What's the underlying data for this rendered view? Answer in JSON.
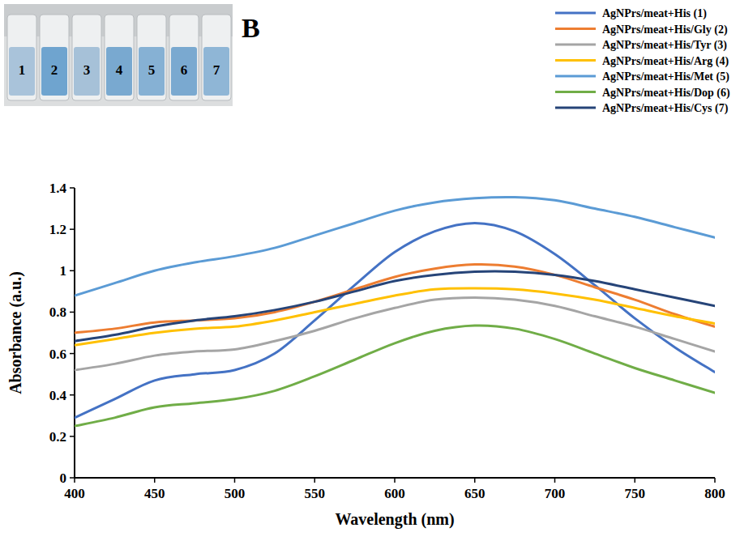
{
  "chart_data": {
    "type": "line",
    "panel_label": "B",
    "inset_labels": [
      "1",
      "2",
      "3",
      "4",
      "5",
      "6",
      "7"
    ],
    "x_label": "Wavelength (nm)",
    "y_label": "Absorbance (a.u.)",
    "x": [
      400,
      425,
      450,
      475,
      500,
      525,
      550,
      575,
      600,
      625,
      650,
      675,
      700,
      725,
      750,
      775,
      800
    ],
    "series": [
      {
        "name": "AgNPrs/meat+His (1)",
        "color": "#4472c4",
        "values": [
          0.29,
          0.38,
          0.47,
          0.5,
          0.52,
          0.6,
          0.76,
          0.93,
          1.09,
          1.19,
          1.23,
          1.19,
          1.08,
          0.93,
          0.77,
          0.63,
          0.51
        ]
      },
      {
        "name": "AgNPrs/meat+His/Gly (2)",
        "color": "#ed7d31",
        "values": [
          0.7,
          0.72,
          0.75,
          0.76,
          0.77,
          0.8,
          0.85,
          0.91,
          0.97,
          1.01,
          1.03,
          1.02,
          0.98,
          0.92,
          0.86,
          0.79,
          0.73
        ]
      },
      {
        "name": "AgNPrs/meat+His/Tyr (3)",
        "color": "#a5a5a5",
        "values": [
          0.52,
          0.55,
          0.59,
          0.61,
          0.62,
          0.66,
          0.71,
          0.77,
          0.82,
          0.86,
          0.87,
          0.86,
          0.83,
          0.78,
          0.73,
          0.67,
          0.61
        ]
      },
      {
        "name": "AgNPrs/meat+His/Arg (4)",
        "color": "#ffc000",
        "values": [
          0.64,
          0.67,
          0.7,
          0.72,
          0.73,
          0.76,
          0.8,
          0.84,
          0.88,
          0.91,
          0.915,
          0.91,
          0.89,
          0.86,
          0.82,
          0.78,
          0.745
        ]
      },
      {
        "name": "AgNPrs/meat+His/Met (5)",
        "color": "#5b9bd5",
        "values": [
          0.88,
          0.94,
          1.0,
          1.04,
          1.07,
          1.11,
          1.17,
          1.23,
          1.29,
          1.33,
          1.35,
          1.355,
          1.34,
          1.3,
          1.26,
          1.21,
          1.16
        ]
      },
      {
        "name": "AgNPrs/meat+His/Dop (6)",
        "color": "#70ad47",
        "values": [
          0.25,
          0.29,
          0.34,
          0.36,
          0.38,
          0.42,
          0.49,
          0.57,
          0.65,
          0.71,
          0.735,
          0.72,
          0.67,
          0.6,
          0.53,
          0.47,
          0.41
        ]
      },
      {
        "name": "AgNPrs/meat+His/Cys (7)",
        "color": "#264478",
        "values": [
          0.66,
          0.69,
          0.73,
          0.76,
          0.78,
          0.81,
          0.85,
          0.9,
          0.95,
          0.98,
          0.995,
          0.995,
          0.98,
          0.95,
          0.91,
          0.87,
          0.83
        ]
      }
    ],
    "xlim": [
      400,
      800
    ],
    "ylim": [
      0,
      1.4
    ],
    "xticks": [
      400,
      450,
      500,
      550,
      600,
      650,
      700,
      750,
      800
    ],
    "yticks": [
      0,
      0.2,
      0.4,
      0.6,
      0.8,
      1,
      1.2,
      1.4
    ],
    "grid": false,
    "legend": "upper right"
  }
}
